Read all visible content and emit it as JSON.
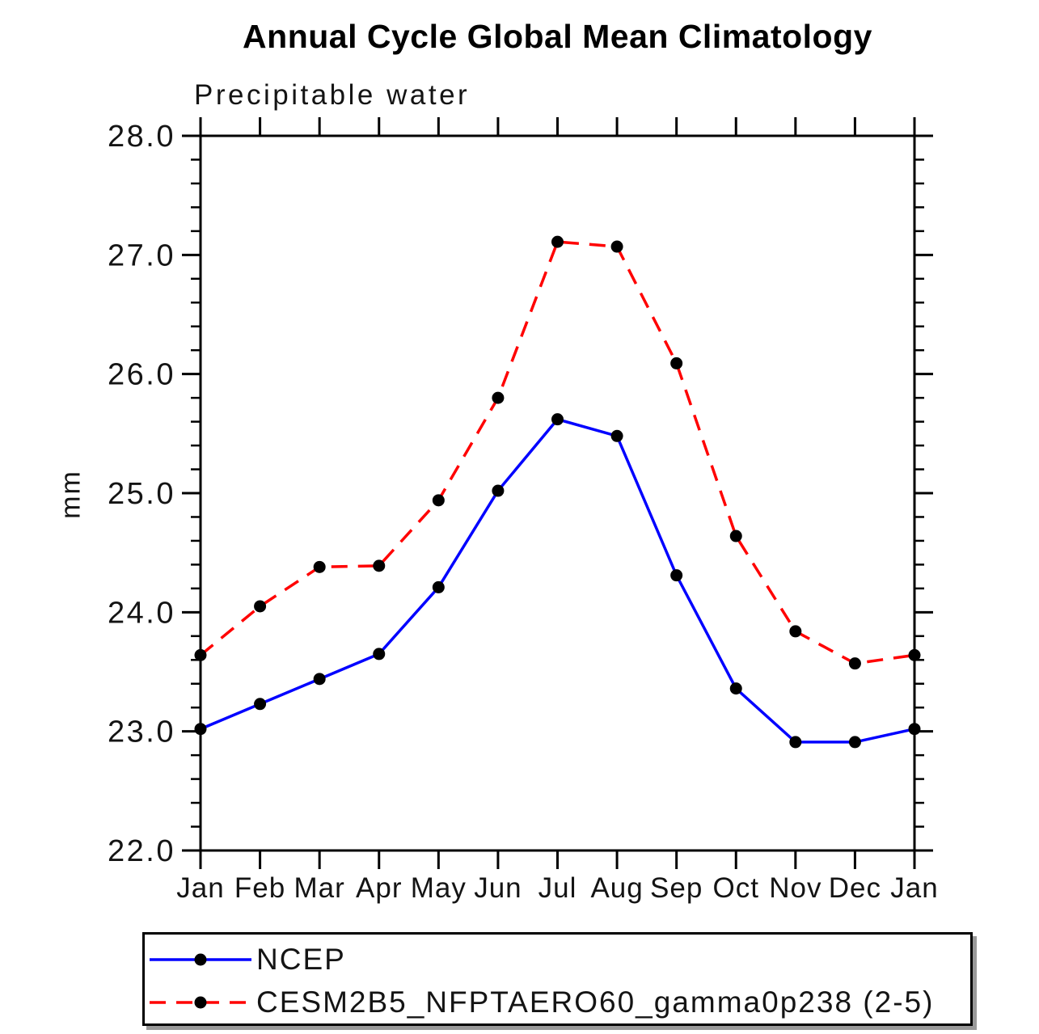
{
  "chart_data": {
    "type": "line",
    "title": "Annual Cycle Global Mean Climatology",
    "subtitle": "Precipitable water",
    "ylabel": "mm",
    "x_categories": [
      "Jan",
      "Feb",
      "Mar",
      "Apr",
      "May",
      "Jun",
      "Jul",
      "Aug",
      "Sep",
      "Oct",
      "Nov",
      "Dec",
      "Jan"
    ],
    "ylim": [
      22.0,
      28.0
    ],
    "y_major_tick_labels": [
      "22.0",
      "23.0",
      "24.0",
      "25.0",
      "26.0",
      "27.0",
      "28.0"
    ],
    "y_minor_step": 0.2,
    "grid": "off",
    "legend_position": "bottom-left-box",
    "marker": "filled-black-circle",
    "series": [
      {
        "name": "NCEP",
        "color": "#0000ff",
        "line_style": "solid",
        "values": [
          23.02,
          23.23,
          23.44,
          23.65,
          24.21,
          25.02,
          25.62,
          25.48,
          24.31,
          23.36,
          22.91,
          22.91,
          23.02
        ]
      },
      {
        "name": "CESM2B5_NFPTAERO60_gamma0p238 (2-5)",
        "color": "#ff0000",
        "line_style": "dashed",
        "values": [
          23.64,
          24.05,
          24.38,
          24.39,
          24.94,
          25.8,
          27.11,
          27.07,
          26.09,
          24.64,
          23.84,
          23.57,
          23.64
        ]
      }
    ],
    "axis_color": "#000000",
    "marker_color": "#000000"
  }
}
